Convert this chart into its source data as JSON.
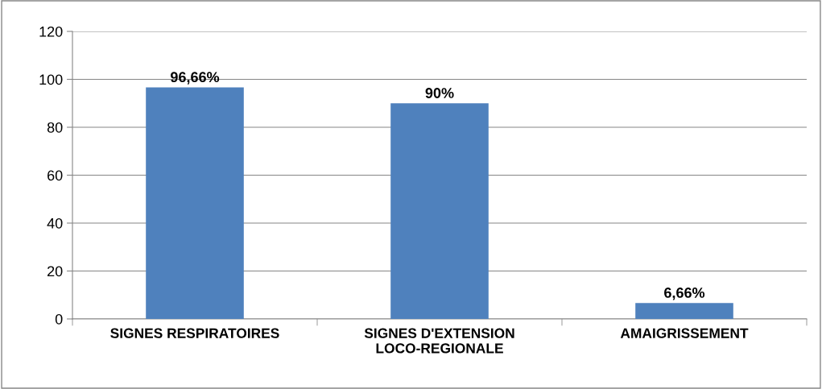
{
  "chart_data": {
    "type": "bar",
    "categories": [
      "SIGNES RESPIRATOIRES",
      "SIGNES D'EXTENSION\nLOCO-REGIONALE",
      "AMAIGRISSEMENT"
    ],
    "values": [
      96.66,
      90,
      6.66
    ],
    "value_labels": [
      "96,66%",
      "90%",
      "6,66%"
    ],
    "color": "#4f81bd",
    "ylim": [
      0,
      120
    ],
    "yticks": [
      0,
      20,
      40,
      60,
      80,
      100,
      120
    ],
    "grid": "y"
  }
}
